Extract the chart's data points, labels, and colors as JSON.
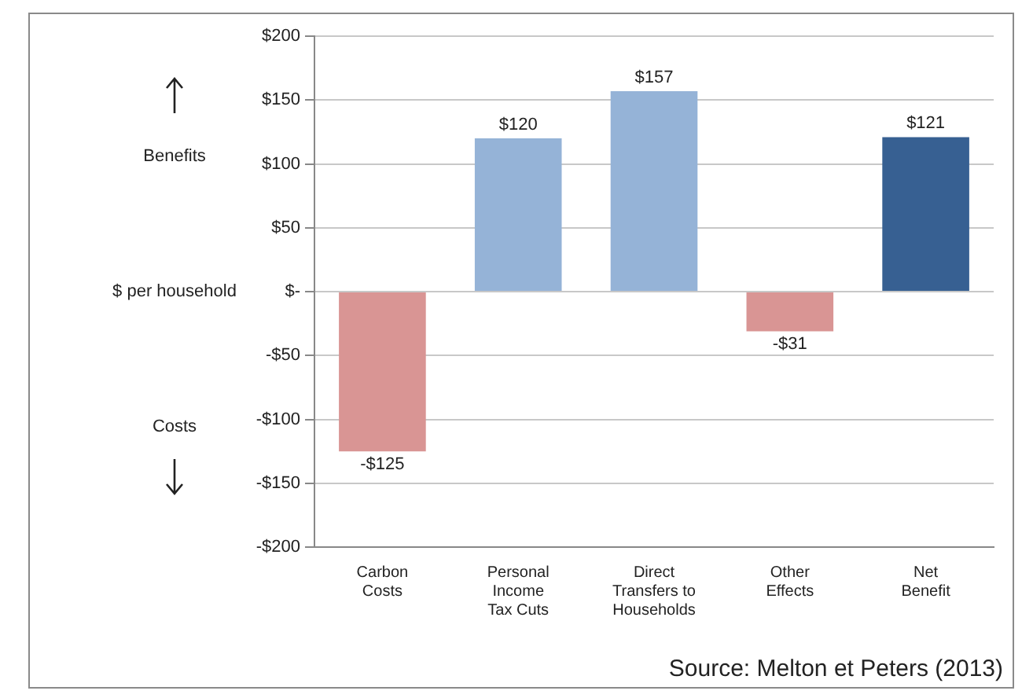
{
  "chart_data": {
    "type": "bar",
    "ylabel": "$ per household",
    "categories": [
      "Carbon\nCosts",
      "Personal\nIncome\nTax Cuts",
      "Direct\nTransfers to\nHouseholds",
      "Other\nEffects",
      "Net\nBenefit"
    ],
    "values": [
      -125,
      120,
      157,
      -31,
      121
    ],
    "colors": [
      "#d99594",
      "#95b3d7",
      "#95b3d7",
      "#d99594",
      "#376092"
    ],
    "value_labels": [
      "-$125",
      "$120",
      "$157",
      "-$31",
      "$121"
    ],
    "ylim": [
      -200,
      200
    ],
    "yticks": [
      {
        "value": -200,
        "label": "-$200"
      },
      {
        "value": -150,
        "label": "-$150"
      },
      {
        "value": -100,
        "label": "-$100"
      },
      {
        "value": -50,
        "label": "-$50"
      },
      {
        "value": 0,
        "label": "$-"
      },
      {
        "value": 50,
        "label": "$50"
      },
      {
        "value": 100,
        "label": "$100"
      },
      {
        "value": 150,
        "label": "$150"
      },
      {
        "value": 200,
        "label": "$200"
      }
    ],
    "grid": "y",
    "legend": false,
    "annotations": [
      "Benefits",
      "Costs",
      "Source: Melton et Peters (2013)"
    ]
  }
}
